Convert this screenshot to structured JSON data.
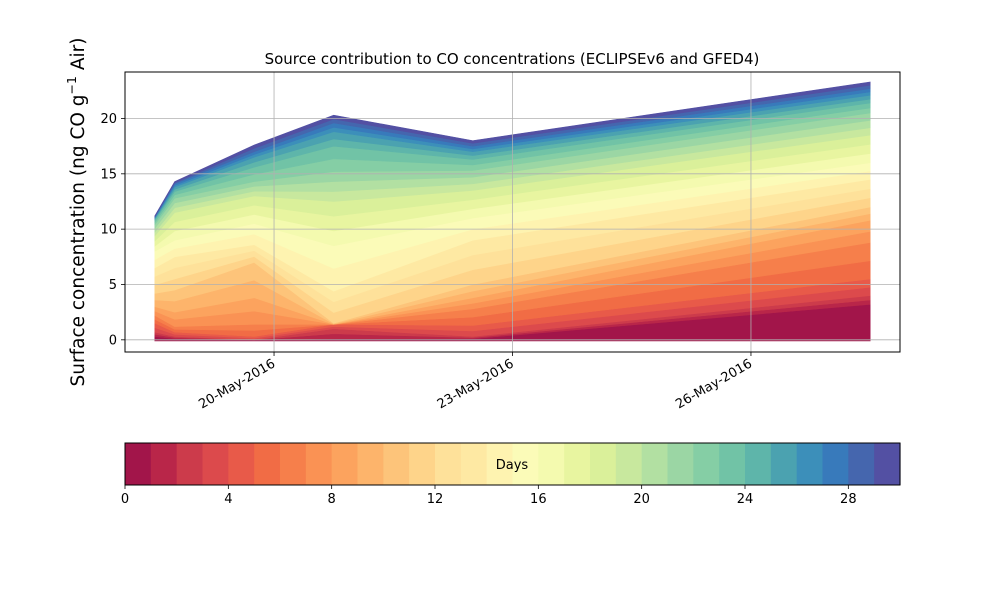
{
  "chart_data": {
    "type": "area",
    "title": "Source contribution to CO concentrations (ECLIPSEv6 and GFED4)",
    "ylabel_main": "Surface concentration (ng CO g",
    "ylabel_sup": "−1",
    "ylabel_tail": " Air)",
    "xlabel": "",
    "x_axis": "date",
    "xlim": [
      "2016-05-18T03:00",
      "2016-05-27T21:00"
    ],
    "ylim": [
      -1.1,
      24.2
    ],
    "grid": true,
    "x_ticks": [
      {
        "date": "2016-05-20",
        "label": "20-May-2016"
      },
      {
        "date": "2016-05-23",
        "label": "23-May-2016"
      },
      {
        "date": "2016-05-26",
        "label": "26-May-2016"
      }
    ],
    "y_ticks": [
      0,
      5,
      10,
      15,
      20
    ],
    "x": [
      "2016-05-18T12:00",
      "2016-05-18T18:00",
      "2016-05-19T18:00",
      "2016-05-20T18:00",
      "2016-05-22T12:00",
      "2016-05-27T12:00"
    ],
    "anchors": {
      "days": [
        0,
        1,
        3,
        5,
        7,
        9,
        11,
        14,
        16,
        19,
        22,
        24,
        26,
        28,
        30
      ],
      "cumulative": [
        [
          -0.1,
          -0.1,
          -0.1,
          -0.1,
          -0.1,
          -0.1
        ],
        [
          0.3,
          0.1,
          0.0,
          0.1,
          0.1,
          3.2
        ],
        [
          0.7,
          0.3,
          0.0,
          1.0,
          0.3,
          4.0
        ],
        [
          1.5,
          0.7,
          0.3,
          1.4,
          1.3,
          5.5
        ],
        [
          2.2,
          1.2,
          1.4,
          1.4,
          2.8,
          8.8
        ],
        [
          3.0,
          2.5,
          3.8,
          1.4,
          3.8,
          10.8
        ],
        [
          4.2,
          4.5,
          7.0,
          1.5,
          5.0,
          12.0
        ],
        [
          6.5,
          7.5,
          8.6,
          4.4,
          9.0,
          14.5
        ],
        [
          8.0,
          9.0,
          10.5,
          8.5,
          11.0,
          16.0
        ],
        [
          9.4,
          11.5,
          13.0,
          12.5,
          13.5,
          18.5
        ],
        [
          10.4,
          12.8,
          14.3,
          15.2,
          15.3,
          20.5
        ],
        [
          10.8,
          13.4,
          15.6,
          17.5,
          16.3,
          21.4
        ],
        [
          11.0,
          13.8,
          16.5,
          18.8,
          17.0,
          22.1
        ],
        [
          11.1,
          14.1,
          17.0,
          19.6,
          17.5,
          22.7
        ],
        [
          11.2,
          14.3,
          17.6,
          20.3,
          18.0,
          23.3
        ]
      ]
    },
    "colorbar": {
      "label": "Days",
      "min": 0,
      "max": 30,
      "ticks": [
        0,
        4,
        8,
        12,
        16,
        20,
        24,
        28
      ],
      "colors": [
        "#a2154a",
        "#b92649",
        "#cc3b4b",
        "#dc4a4c",
        "#e85a49",
        "#f16c45",
        "#f67f4b",
        "#fa9254",
        "#fca35e",
        "#fdb46b",
        "#fdc47a",
        "#fed48a",
        "#fee19a",
        "#fee9a3",
        "#fef3b0",
        "#fbfbb8",
        "#f4faaf",
        "#e8f5a0",
        "#daf09a",
        "#c8e89e",
        "#b2e0a2",
        "#9bd6a4",
        "#85cea5",
        "#71c3a6",
        "#5eb5aa",
        "#4ba2b0",
        "#3c8fba",
        "#387abb",
        "#4566ae",
        "#5350a3"
      ]
    }
  }
}
